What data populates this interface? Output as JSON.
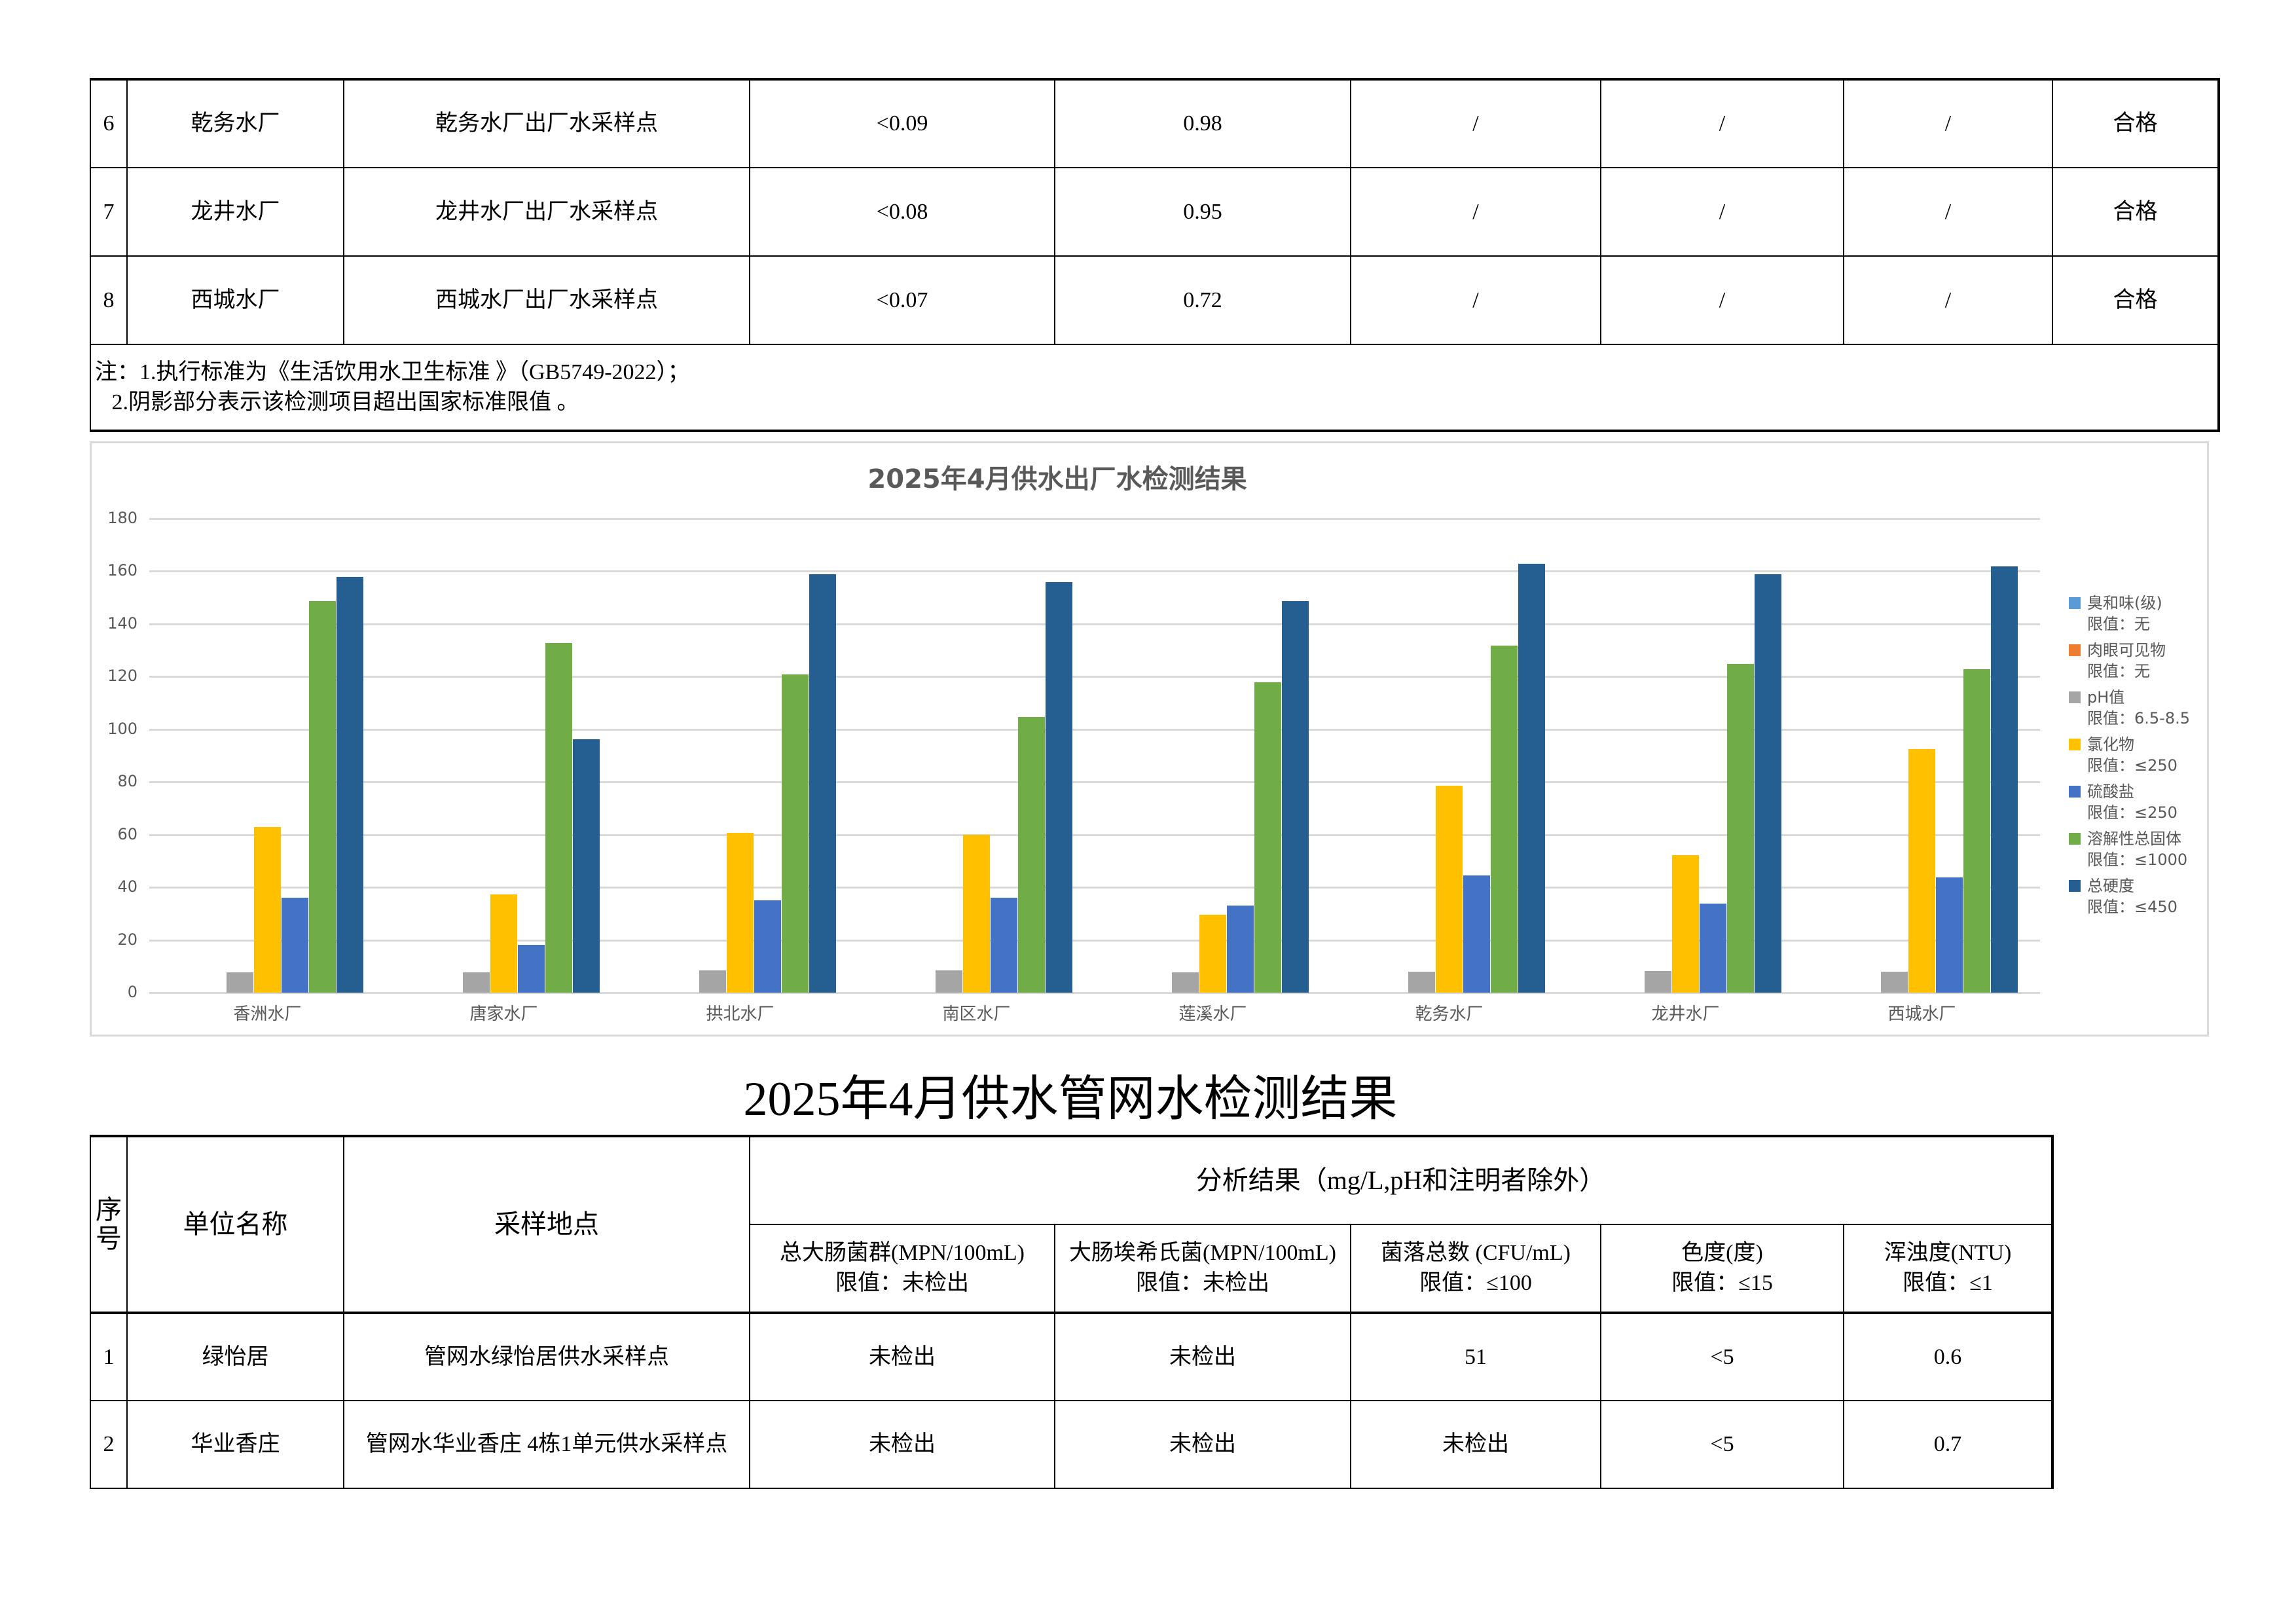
{
  "top_table": {
    "rows": [
      {
        "no": "6",
        "unit": "乾务水厂",
        "site": "乾务水厂出厂水采样点",
        "c1": "<0.09",
        "c2": "0.98",
        "c3": "/",
        "c4": "/",
        "c5": "/",
        "result": "合格"
      },
      {
        "no": "7",
        "unit": "龙井水厂",
        "site": "龙井水厂出厂水采样点",
        "c1": "<0.08",
        "c2": "0.95",
        "c3": "/",
        "c4": "/",
        "c5": "/",
        "result": "合格"
      },
      {
        "no": "8",
        "unit": "西城水厂",
        "site": "西城水厂出厂水采样点",
        "c1": "<0.07",
        "c2": "0.72",
        "c3": "/",
        "c4": "/",
        "c5": "/",
        "result": "合格"
      }
    ],
    "note_line1": "注：1.执行标准为《生活饮用水卫生标准 》（GB5749-2022）；",
    "note_line2": "   2.阴影部分表示该检测项目超出国家标准限值 。"
  },
  "chart_data": {
    "type": "bar",
    "title": "2025年4月供水出厂水检测结果",
    "xlabel": "",
    "ylabel": "",
    "ylim": [
      0,
      180
    ],
    "yticks": [
      "0",
      "20",
      "40",
      "60",
      "80",
      "100",
      "120",
      "140",
      "160",
      "180"
    ],
    "grid": true,
    "legend_position": "right",
    "categories": [
      "香洲水厂",
      "唐家水厂",
      "拱北水厂",
      "南区水厂",
      "莲溪水厂",
      "乾务水厂",
      "龙井水厂",
      "西城水厂"
    ],
    "series": [
      {
        "name": "臭和味(级)",
        "limit": "限值：无",
        "color": "#5B9BD5",
        "values": [
          0,
          0,
          0,
          0,
          0,
          0,
          0,
          0
        ]
      },
      {
        "name": "肉眼可见物",
        "limit": "限值：无",
        "color": "#ED7D31",
        "values": [
          0,
          0,
          0,
          0,
          0,
          0,
          0,
          0
        ]
      },
      {
        "name": "pH值",
        "limit": "限值：6.5-8.5",
        "color": "#A5A5A5",
        "values": [
          7.7,
          7.7,
          8.5,
          8.4,
          7.7,
          7.9,
          8.2,
          7.9
        ]
      },
      {
        "name": "氯化物",
        "limit": "限值：≤250",
        "color": "#FFC000",
        "values": [
          63,
          37.4,
          60.6,
          60,
          29.7,
          78.5,
          52.1,
          92.6
        ]
      },
      {
        "name": "硫酸盐",
        "limit": "限值：≤250",
        "color": "#4472C4",
        "values": [
          36.1,
          18.2,
          35.1,
          36,
          33,
          44.4,
          33.7,
          43.7
        ]
      },
      {
        "name": "溶解性总固体",
        "limit": "限值：≤1000",
        "color": "#70AD47",
        "values": [
          148.7,
          132.8,
          120.8,
          104.7,
          117.8,
          131.8,
          124.8,
          122.8
        ]
      },
      {
        "name": "总硬度",
        "limit": "限值：≤450",
        "color": "#255E91",
        "values": [
          157.9,
          96.3,
          158.9,
          156,
          148.7,
          162.9,
          158.9,
          161.9
        ]
      }
    ]
  },
  "pipe_section": {
    "title": "2025年4月供水管网水检测结果",
    "headers": {
      "no": "序号",
      "unit": "单位名称",
      "site": "采样地点",
      "analysis": "分析结果（mg/L,pH和注明者除外）",
      "cols": [
        {
          "name": "总大肠菌群(MPN/100mL)",
          "limit": "限值：未检出"
        },
        {
          "name": "大肠埃希氏菌(MPN/100mL)",
          "limit": "限值：未检出"
        },
        {
          "name": "菌落总数 (CFU/mL)",
          "limit": "限值：≤100"
        },
        {
          "name": "色度(度)",
          "limit": "限值：≤15"
        },
        {
          "name": "浑浊度(NTU)",
          "limit": "限值：≤1"
        }
      ]
    },
    "rows": [
      {
        "no": "1",
        "unit": "绿怡居",
        "site": "管网水绿怡居供水采样点",
        "v": [
          "未检出",
          "未检出",
          "51",
          "<5",
          "0.6"
        ]
      },
      {
        "no": "2",
        "unit": "华业香庄",
        "site": "管网水华业香庄 4栋1单元供水采样点",
        "v": [
          "未检出",
          "未检出",
          "未检出",
          "<5",
          "0.7"
        ]
      }
    ]
  }
}
